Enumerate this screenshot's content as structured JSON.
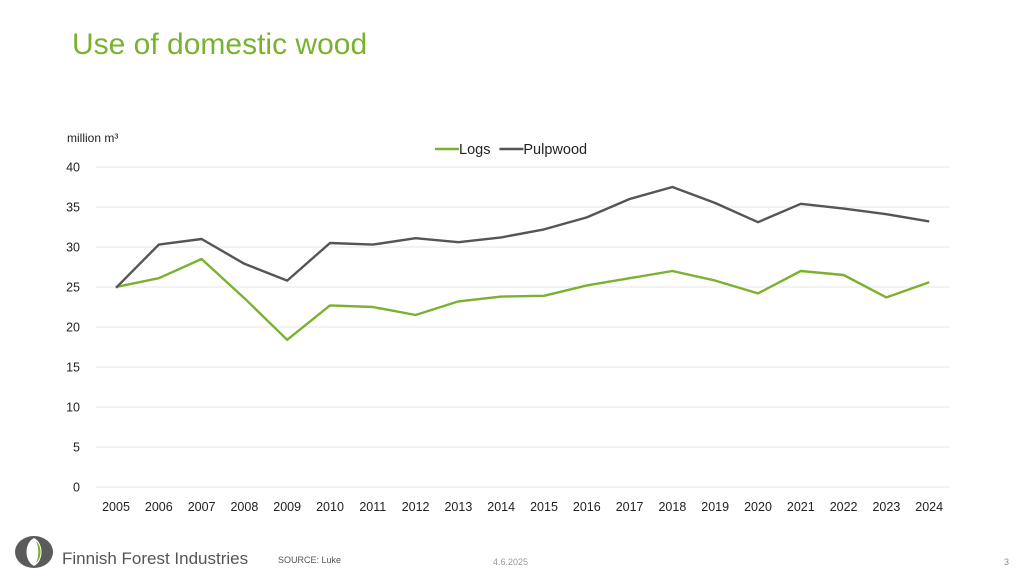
{
  "page": {
    "title": "Use of domestic wood",
    "brand": "Finnish Forest Industries",
    "source": "SOURCE: Luke",
    "date": "4.6.2025",
    "page_number": "3"
  },
  "colors": {
    "title": "#7ab22f",
    "logs": "#7ab22f",
    "pulpwood": "#555555",
    "grid": "#e6e6e6"
  },
  "chart_data": {
    "type": "line",
    "title": "",
    "ylabel": "million m³",
    "xlabel": "",
    "ylim": [
      0,
      40
    ],
    "yticks": [
      0,
      5,
      10,
      15,
      20,
      25,
      30,
      35,
      40
    ],
    "grid": "horizontal",
    "legend_position": "top",
    "categories": [
      "2005",
      "2006",
      "2007",
      "2008",
      "2009",
      "2010",
      "2011",
      "2012",
      "2013",
      "2014",
      "2015",
      "2016",
      "2017",
      "2018",
      "2019",
      "2020",
      "2021",
      "2022",
      "2023",
      "2024"
    ],
    "series": [
      {
        "name": "Logs",
        "color": "#7ab22f",
        "values": [
          25.0,
          26.1,
          28.5,
          23.6,
          18.4,
          22.7,
          22.5,
          21.5,
          23.2,
          23.8,
          23.9,
          25.2,
          26.1,
          27.0,
          25.8,
          24.2,
          27.0,
          26.5,
          23.7,
          25.6
        ]
      },
      {
        "name": "Pulpwood",
        "color": "#555555",
        "values": [
          24.9,
          30.3,
          31.0,
          27.9,
          25.8,
          30.5,
          30.3,
          31.1,
          30.6,
          31.2,
          32.2,
          33.7,
          36.0,
          37.5,
          35.5,
          33.1,
          35.4,
          34.8,
          34.1,
          33.2
        ]
      }
    ]
  }
}
